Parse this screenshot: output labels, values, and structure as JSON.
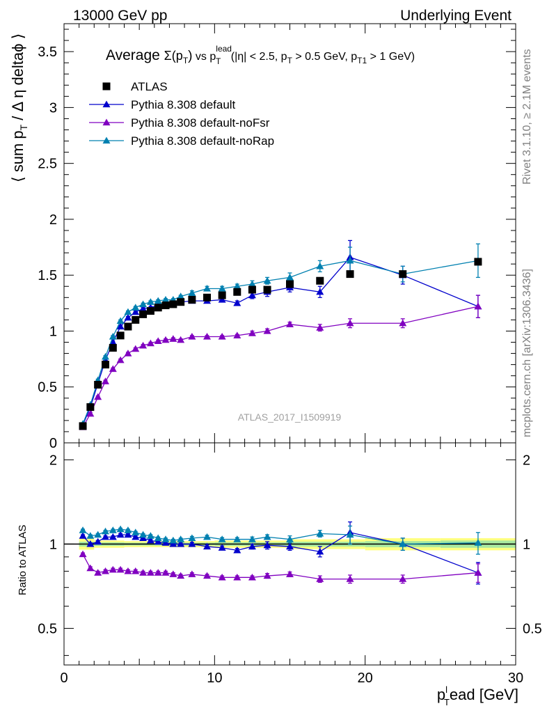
{
  "header": {
    "left": "13000 GeV pp",
    "right": "Underlying Event"
  },
  "side_labels": {
    "rivet": "Rivet 3.1.10, ≥ 2.1M events",
    "mcplots": "mcplots.cern.ch [arXiv:1306.3436]"
  },
  "analysis_tag": "ATLAS_2017_I1509919",
  "chart_data": [
    {
      "panel": "main",
      "type": "scatter",
      "title_parts": {
        "prefix": "Average ",
        "sigma": "Σ(p",
        "sub_t": "T",
        "close": ")",
        "vs": " vs p",
        "sup_lead": "lead",
        "sub_t2": "T",
        "cuts1": " (|η| < 2.5, p",
        "sub_t3": "T",
        "cuts2": " > 0.5 GeV, p",
        "sub_t1": "T1",
        "cuts3": " > 1 GeV)"
      },
      "ylabel_parts": {
        "open": "⟨ sum p",
        "sub": "T",
        "rest": " / Δ η deltaϕ ⟩"
      },
      "xlabel_parts": {
        "p": "p",
        "sup": "l",
        "sub": "T",
        "rest": "ead [GeV]"
      },
      "xlim": [
        0,
        30
      ],
      "ylim": [
        0,
        3.75
      ],
      "y_ticks": [
        0,
        0.5,
        1,
        1.5,
        2,
        2.5,
        3,
        3.5
      ],
      "y_tick_labels": [
        "0",
        "0.5",
        "1",
        "1.5",
        "2",
        "2.5",
        "3",
        "3.5"
      ],
      "x_ticks": [
        0,
        10,
        20,
        30
      ],
      "x_tick_labels": [
        "0",
        "10",
        "20",
        "30"
      ],
      "legend_position": "top-left",
      "series": [
        {
          "name": "ATLAS",
          "marker": "square",
          "color": "#000000",
          "x": [
            1.25,
            1.75,
            2.25,
            2.75,
            3.25,
            3.75,
            4.25,
            4.75,
            5.25,
            5.75,
            6.25,
            6.75,
            7.25,
            7.75,
            8.5,
            9.5,
            10.5,
            11.5,
            12.5,
            13.5,
            15.0,
            17.0,
            19.0,
            22.5,
            27.5
          ],
          "y": [
            0.15,
            0.32,
            0.52,
            0.7,
            0.85,
            0.96,
            1.04,
            1.1,
            1.15,
            1.18,
            1.21,
            1.23,
            1.24,
            1.26,
            1.28,
            1.3,
            1.32,
            1.35,
            1.37,
            1.37,
            1.42,
            1.45,
            1.51,
            1.51,
            1.62
          ]
        },
        {
          "name": "Pythia 8.308 default",
          "marker": "triangle",
          "color": "#0000cc",
          "x": [
            1.25,
            1.75,
            2.25,
            2.75,
            3.25,
            3.75,
            4.25,
            4.75,
            5.25,
            5.75,
            6.25,
            6.75,
            7.25,
            7.75,
            8.5,
            9.5,
            10.5,
            11.5,
            12.5,
            13.5,
            15.0,
            17.0,
            19.0,
            22.5,
            27.5
          ],
          "y": [
            0.16,
            0.32,
            0.53,
            0.74,
            0.9,
            1.04,
            1.12,
            1.17,
            1.2,
            1.21,
            1.23,
            1.24,
            1.24,
            1.26,
            1.27,
            1.27,
            1.28,
            1.25,
            1.32,
            1.35,
            1.39,
            1.35,
            1.66,
            1.5,
            1.22
          ],
          "err": [
            0.01,
            0.01,
            0.01,
            0.01,
            0.01,
            0.01,
            0.01,
            0.01,
            0.01,
            0.01,
            0.01,
            0.01,
            0.01,
            0.01,
            0.02,
            0.02,
            0.02,
            0.02,
            0.03,
            0.04,
            0.04,
            0.05,
            0.15,
            0.08,
            0.1
          ]
        },
        {
          "name": "Pythia 8.308 default-noFsr",
          "marker": "triangle",
          "color": "#8000c0",
          "x": [
            1.25,
            1.75,
            2.25,
            2.75,
            3.25,
            3.75,
            4.25,
            4.75,
            5.25,
            5.75,
            6.25,
            6.75,
            7.25,
            7.75,
            8.5,
            9.5,
            10.5,
            11.5,
            12.5,
            13.5,
            15.0,
            17.0,
            19.0,
            22.5,
            27.5
          ],
          "y": [
            0.14,
            0.26,
            0.41,
            0.55,
            0.66,
            0.74,
            0.8,
            0.84,
            0.87,
            0.89,
            0.91,
            0.92,
            0.93,
            0.92,
            0.95,
            0.95,
            0.95,
            0.96,
            0.98,
            1.0,
            1.06,
            1.03,
            1.07,
            1.07,
            1.22
          ],
          "err": [
            0.01,
            0.01,
            0.01,
            0.01,
            0.01,
            0.01,
            0.01,
            0.01,
            0.01,
            0.01,
            0.01,
            0.01,
            0.01,
            0.01,
            0.01,
            0.01,
            0.01,
            0.01,
            0.02,
            0.02,
            0.02,
            0.03,
            0.04,
            0.04,
            0.1
          ]
        },
        {
          "name": "Pythia 8.308 default-noRap",
          "marker": "triangle",
          "color": "#0080b0",
          "x": [
            1.25,
            1.75,
            2.25,
            2.75,
            3.25,
            3.75,
            4.25,
            4.75,
            5.25,
            5.75,
            6.25,
            6.75,
            7.25,
            7.75,
            8.5,
            9.5,
            10.5,
            11.5,
            12.5,
            13.5,
            15.0,
            17.0,
            19.0,
            22.5,
            27.5
          ],
          "y": [
            0.17,
            0.34,
            0.56,
            0.77,
            0.95,
            1.09,
            1.17,
            1.21,
            1.24,
            1.26,
            1.27,
            1.28,
            1.28,
            1.31,
            1.34,
            1.38,
            1.38,
            1.4,
            1.42,
            1.45,
            1.48,
            1.58,
            1.63,
            1.51,
            1.63
          ],
          "err": [
            0.01,
            0.01,
            0.01,
            0.01,
            0.01,
            0.01,
            0.01,
            0.01,
            0.01,
            0.01,
            0.01,
            0.01,
            0.01,
            0.01,
            0.02,
            0.02,
            0.02,
            0.02,
            0.03,
            0.03,
            0.04,
            0.05,
            0.12,
            0.07,
            0.15
          ]
        }
      ]
    },
    {
      "panel": "ratio",
      "type": "scatter",
      "ylabel": "Ratio to ATLAS",
      "xlim": [
        0,
        30
      ],
      "ylim_log": [
        0.37,
        2.3
      ],
      "y_ticks": [
        0.5,
        1,
        2
      ],
      "y_tick_labels": [
        "0.5",
        "1",
        "2"
      ],
      "x_ticks": [
        0,
        10,
        20,
        30
      ],
      "x_tick_labels": [
        "0",
        "10",
        "20",
        "30"
      ],
      "reference_line": 1,
      "band_colors": {
        "outer": "#ffff80",
        "inner": "#a8e8a0"
      },
      "bands": [
        {
          "x": [
            1.0,
            2.0,
            4.0,
            7.0,
            10.0,
            15.0,
            20.0,
            25.0,
            30.0
          ],
          "outer": [
            0.045,
            0.03,
            0.025,
            0.025,
            0.03,
            0.04,
            0.05,
            0.05,
            0.07
          ],
          "inner": [
            0.02,
            0.015,
            0.012,
            0.012,
            0.015,
            0.02,
            0.025,
            0.03,
            0.04
          ]
        }
      ],
      "series": [
        {
          "name": "Pythia 8.308 default",
          "color": "#0000cc",
          "x": [
            1.25,
            1.75,
            2.25,
            2.75,
            3.25,
            3.75,
            4.25,
            4.75,
            5.25,
            5.75,
            6.25,
            6.75,
            7.25,
            7.75,
            8.5,
            9.5,
            10.5,
            11.5,
            12.5,
            13.5,
            15.0,
            17.0,
            19.0,
            22.5,
            27.5
          ],
          "y": [
            1.07,
            1.0,
            1.02,
            1.06,
            1.06,
            1.08,
            1.08,
            1.06,
            1.05,
            1.03,
            1.02,
            1.01,
            1.0,
            1.0,
            1.0,
            0.98,
            0.97,
            0.95,
            0.98,
            0.99,
            0.98,
            0.94,
            1.1,
            1.0,
            0.79
          ],
          "err": [
            0.01,
            0.01,
            0.01,
            0.01,
            0.01,
            0.01,
            0.01,
            0.01,
            0.01,
            0.01,
            0.01,
            0.01,
            0.01,
            0.01,
            0.015,
            0.015,
            0.015,
            0.015,
            0.02,
            0.03,
            0.03,
            0.04,
            0.1,
            0.05,
            0.07
          ]
        },
        {
          "name": "Pythia 8.308 default-noFsr",
          "color": "#8000c0",
          "x": [
            1.25,
            1.75,
            2.25,
            2.75,
            3.25,
            3.75,
            4.25,
            4.75,
            5.25,
            5.75,
            6.25,
            6.75,
            7.25,
            7.75,
            8.5,
            9.5,
            10.5,
            11.5,
            12.5,
            13.5,
            15.0,
            17.0,
            19.0,
            22.5,
            27.5
          ],
          "y": [
            0.92,
            0.82,
            0.79,
            0.8,
            0.81,
            0.81,
            0.8,
            0.8,
            0.79,
            0.79,
            0.79,
            0.79,
            0.78,
            0.77,
            0.78,
            0.77,
            0.76,
            0.76,
            0.76,
            0.77,
            0.78,
            0.75,
            0.75,
            0.75,
            0.79
          ],
          "err": [
            0.01,
            0.01,
            0.01,
            0.01,
            0.01,
            0.01,
            0.01,
            0.01,
            0.01,
            0.01,
            0.01,
            0.01,
            0.01,
            0.01,
            0.01,
            0.01,
            0.01,
            0.01,
            0.01,
            0.015,
            0.015,
            0.02,
            0.025,
            0.025,
            0.06
          ]
        },
        {
          "name": "Pythia 8.308 default-noRap",
          "color": "#0080b0",
          "x": [
            1.25,
            1.75,
            2.25,
            2.75,
            3.25,
            3.75,
            4.25,
            4.75,
            5.25,
            5.75,
            6.25,
            6.75,
            7.25,
            7.75,
            8.5,
            9.5,
            10.5,
            11.5,
            12.5,
            13.5,
            15.0,
            17.0,
            19.0,
            22.5,
            27.5
          ],
          "y": [
            1.12,
            1.07,
            1.08,
            1.11,
            1.12,
            1.13,
            1.12,
            1.1,
            1.08,
            1.07,
            1.05,
            1.04,
            1.03,
            1.04,
            1.05,
            1.06,
            1.04,
            1.04,
            1.04,
            1.06,
            1.04,
            1.09,
            1.08,
            1.0,
            1.01
          ],
          "err": [
            0.01,
            0.01,
            0.01,
            0.01,
            0.01,
            0.01,
            0.01,
            0.01,
            0.01,
            0.01,
            0.01,
            0.01,
            0.01,
            0.01,
            0.015,
            0.015,
            0.015,
            0.015,
            0.02,
            0.02,
            0.03,
            0.03,
            0.08,
            0.05,
            0.09
          ]
        }
      ]
    }
  ]
}
